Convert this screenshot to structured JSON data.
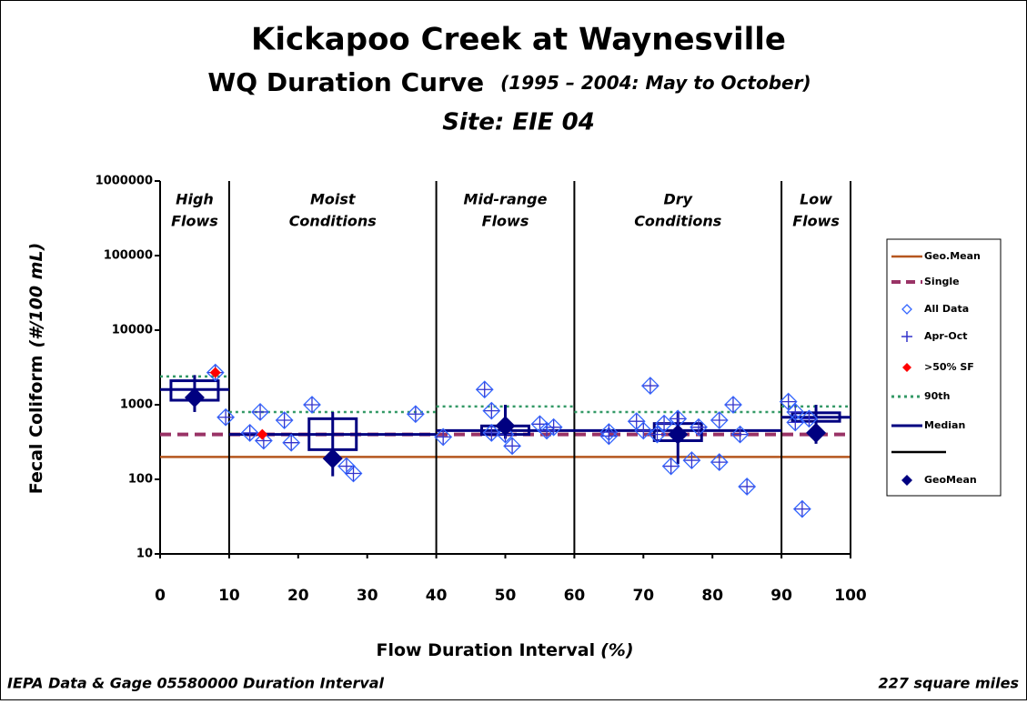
{
  "chart_data": {
    "type": "scatter",
    "title": "Kickapoo Creek at Waynesville",
    "subtitle": "WQ Duration Curve",
    "subtitle_note": "(1995 – 2004:  May to October)",
    "site": "Site:  EIE 04",
    "ylabel": "Fecal Coliform",
    "ylabel_unit": "(#/100 mL)",
    "xlabel": "Flow Duration Interval",
    "xlabel_unit": "(%)",
    "footer_left": "IEPA Data & Gage 05580000 Duration Interval",
    "footer_right": "227 square miles",
    "ylog": true,
    "xlim": [
      0,
      100
    ],
    "ylim": [
      10,
      1000000
    ],
    "xticks": [
      0,
      10,
      20,
      30,
      40,
      50,
      60,
      70,
      80,
      90,
      100
    ],
    "yticks": [
      10,
      100,
      1000,
      10000,
      100000,
      1000000
    ],
    "geo_mean_standard": 200,
    "single_standard": 400,
    "zones": [
      {
        "label": [
          "High",
          "Flows"
        ],
        "from": 0,
        "to": 10,
        "center": 5,
        "p90": 2400,
        "median": 1600,
        "q1": 1150,
        "q3": 2100,
        "geomean": 1250,
        "low": 800,
        "high": 2500
      },
      {
        "label": [
          "Moist",
          "Conditions"
        ],
        "from": 10,
        "to": 40,
        "center": 25,
        "p90": 800,
        "median": 400,
        "q1": 250,
        "q3": 650,
        "geomean": 190,
        "low": 110,
        "high": 800
      },
      {
        "label": [
          "Mid-range",
          "Flows"
        ],
        "from": 40,
        "to": 60,
        "center": 50,
        "p90": 950,
        "median": 450,
        "q1": 400,
        "q3": 520,
        "geomean": 520,
        "low": 350,
        "high": 1000
      },
      {
        "label": [
          "Dry",
          "Conditions"
        ],
        "from": 60,
        "to": 90,
        "center": 75,
        "p90": 800,
        "median": 450,
        "q1": 330,
        "q3": 560,
        "geomean": 400,
        "low": 160,
        "high": 800
      },
      {
        "label": [
          "Low",
          "Flows"
        ],
        "from": 90,
        "to": 100,
        "center": 95,
        "p90": 950,
        "median": 680,
        "q1": 600,
        "q3": 780,
        "geomean": 420,
        "low": 300,
        "high": 1000
      }
    ],
    "all_data": {
      "x": [
        9.5,
        8,
        13,
        14.5,
        15,
        18,
        19,
        22,
        27,
        28,
        37,
        41,
        47,
        48,
        48,
        50,
        51,
        55,
        56,
        57,
        65,
        65,
        69,
        70,
        71,
        72,
        73,
        74,
        75,
        77,
        78,
        81,
        81,
        83,
        84,
        85,
        91,
        92,
        92,
        93,
        94
      ],
      "y": [
        680,
        2700,
        420,
        800,
        330,
        620,
        310,
        1000,
        150,
        120,
        750,
        370,
        1600,
        830,
        420,
        400,
        280,
        550,
        450,
        500,
        380,
        430,
        600,
        450,
        1800,
        400,
        560,
        150,
        650,
        180,
        500,
        170,
        620,
        1000,
        400,
        80,
        1100,
        580,
        800,
        40,
        650
      ]
    },
    "exceed": {
      "x": [
        8,
        14.8
      ],
      "y": [
        2700,
        400
      ]
    },
    "legend": [
      {
        "name": "Geo.Mean",
        "color": "#b5561e"
      },
      {
        "name": "Single",
        "color": "#993366"
      },
      {
        "name": "All Data",
        "color": "#3366ff"
      },
      {
        "name": "Apr-Oct",
        "color": "#3333cc"
      },
      {
        "name": ">50% SF",
        "color": "#ff0000"
      },
      {
        "name": "90th",
        "color": "#339966"
      },
      {
        "name": "Median",
        "color": "#000080"
      },
      {
        "name": "GeoMean",
        "color": "#000080"
      }
    ]
  }
}
